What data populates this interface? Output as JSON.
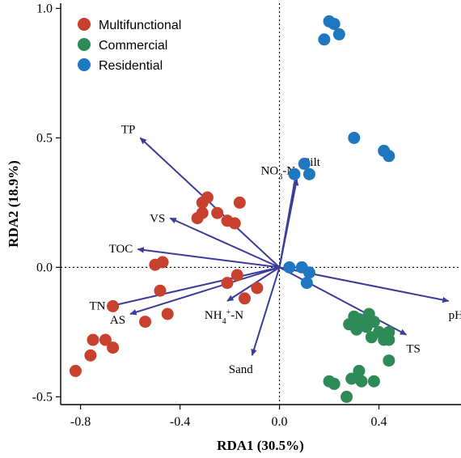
{
  "chart_data": {
    "type": "scatter",
    "xlabel": "RDA1  (30.5%)",
    "ylabel": "RDA2  (18.9%)",
    "xlim": [
      -0.88,
      0.73
    ],
    "ylim": [
      -0.53,
      1.02
    ],
    "x_ticks": [
      -0.8,
      -0.4,
      0.0,
      0.4
    ],
    "x_tick_labels": [
      "-0.8",
      "-0.4",
      "0.0",
      "0.4"
    ],
    "y_ticks": [
      -0.5,
      0.0,
      0.5,
      1.0
    ],
    "y_tick_labels": [
      "-0.5",
      "0.0",
      "0.5",
      "1.0"
    ],
    "zero_lines": true,
    "grid": false,
    "legend_position": "top-left",
    "series": [
      {
        "name": "Multifunctional",
        "color": "#c8412e",
        "points": [
          [
            -0.82,
            -0.4
          ],
          [
            -0.76,
            -0.34
          ],
          [
            -0.75,
            -0.28
          ],
          [
            -0.7,
            -0.28
          ],
          [
            -0.67,
            -0.31
          ],
          [
            -0.67,
            -0.15
          ],
          [
            -0.54,
            -0.21
          ],
          [
            -0.48,
            -0.09
          ],
          [
            -0.45,
            -0.18
          ],
          [
            -0.5,
            0.01
          ],
          [
            -0.47,
            0.02
          ],
          [
            -0.33,
            0.19
          ],
          [
            -0.31,
            0.21
          ],
          [
            -0.31,
            0.25
          ],
          [
            -0.29,
            0.27
          ],
          [
            -0.25,
            0.21
          ],
          [
            -0.21,
            0.18
          ],
          [
            -0.18,
            0.17
          ],
          [
            -0.16,
            0.25
          ],
          [
            -0.17,
            -0.03
          ],
          [
            -0.21,
            -0.06
          ],
          [
            -0.14,
            -0.12
          ],
          [
            -0.09,
            -0.08
          ]
        ]
      },
      {
        "name": "Commercial",
        "color": "#2e8b57",
        "points": [
          [
            0.3,
            -0.19
          ],
          [
            0.32,
            -0.2
          ],
          [
            0.34,
            -0.21
          ],
          [
            0.36,
            -0.18
          ],
          [
            0.38,
            -0.21
          ],
          [
            0.4,
            -0.25
          ],
          [
            0.28,
            -0.22
          ],
          [
            0.31,
            -0.24
          ],
          [
            0.37,
            -0.27
          ],
          [
            0.42,
            -0.28
          ],
          [
            0.44,
            -0.28
          ],
          [
            0.44,
            -0.25
          ],
          [
            0.32,
            -0.4
          ],
          [
            0.29,
            -0.43
          ],
          [
            0.33,
            -0.44
          ],
          [
            0.38,
            -0.44
          ],
          [
            0.44,
            -0.36
          ],
          [
            0.2,
            -0.44
          ],
          [
            0.22,
            -0.45
          ],
          [
            0.27,
            -0.5
          ],
          [
            0.35,
            -0.23
          ]
        ]
      },
      {
        "name": "Residential",
        "color": "#1f78bf",
        "points": [
          [
            0.2,
            0.95
          ],
          [
            0.22,
            0.94
          ],
          [
            0.24,
            0.9
          ],
          [
            0.18,
            0.88
          ],
          [
            0.3,
            0.5
          ],
          [
            0.42,
            0.45
          ],
          [
            0.44,
            0.43
          ],
          [
            0.1,
            0.4
          ],
          [
            0.06,
            0.36
          ],
          [
            0.12,
            0.36
          ],
          [
            0.04,
            0.0
          ],
          [
            0.09,
            0.0
          ],
          [
            0.12,
            -0.02
          ],
          [
            0.11,
            -0.06
          ]
        ]
      }
    ],
    "vectors": [
      {
        "label": "TP",
        "x": -0.56,
        "y": 0.5,
        "label_anchor": "end",
        "label_dx": -6,
        "label_dy": -6
      },
      {
        "label": "VS",
        "x": -0.44,
        "y": 0.19,
        "label_anchor": "end",
        "label_dx": -6,
        "label_dy": 5
      },
      {
        "label": "TOC",
        "x": -0.57,
        "y": 0.07,
        "label_anchor": "end",
        "label_dx": -6,
        "label_dy": 4
      },
      {
        "label": "TN",
        "x": -0.68,
        "y": -0.15,
        "label_anchor": "end",
        "label_dx": -6,
        "label_dy": 4
      },
      {
        "label": "AS",
        "x": -0.6,
        "y": -0.18,
        "label_anchor": "end",
        "label_dx": -6,
        "label_dy": 12
      },
      {
        "label": "NH4+-N",
        "x": -0.21,
        "y": -0.13,
        "label_anchor": "middle",
        "label_dx": -4,
        "label_dy": 22
      },
      {
        "label": "Sand",
        "x": -0.11,
        "y": -0.34,
        "label_anchor": "middle",
        "label_dx": -14,
        "label_dy": 22
      },
      {
        "label": "NO3--N",
        "x": 0.07,
        "y": 0.34,
        "label_anchor": "end",
        "label_dx": -2,
        "label_dy": -6
      },
      {
        "label": "Silt",
        "x": 0.07,
        "y": 0.38,
        "label_anchor": "start",
        "label_dx": 8,
        "label_dy": -4
      },
      {
        "label": "pH",
        "x": 0.68,
        "y": -0.13,
        "label_anchor": "start",
        "label_dx": 0,
        "label_dy": 22
      },
      {
        "label": "TS",
        "x": 0.51,
        "y": -0.26,
        "label_anchor": "start",
        "label_dx": 0,
        "label_dy": 22
      }
    ]
  }
}
